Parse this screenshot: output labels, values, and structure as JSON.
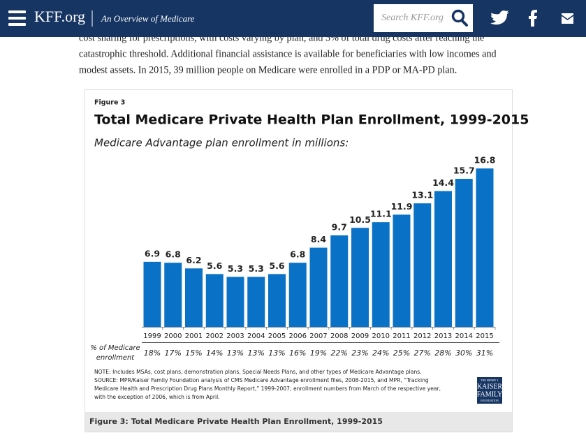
{
  "header": {
    "logo": "KFF.org",
    "section": "An Overview of Medicare",
    "search_placeholder": "Search KFF.org"
  },
  "paragraph": [
    "cost sharing for prescriptions, with costs varying by plan, and 5% of total drug costs after reaching the",
    "catastrophic threshold. Additional financial assistance is available for beneficiaries with low incomes and",
    "modest assets. In 2015, 39 million people on Medicare were enrolled in a PDP or MA-PD plan."
  ],
  "chart_data": {
    "type": "bar",
    "figure_label": "Figure 3",
    "title": "Total Medicare Private Health Plan Enrollment, 1999-2015",
    "subtitle": "Medicare Advantage plan enrollment in millions:",
    "categories": [
      "1999",
      "2000",
      "2001",
      "2002",
      "2003",
      "2004",
      "2005",
      "2006",
      "2007",
      "2008",
      "2009",
      "2010",
      "2011",
      "2012",
      "2013",
      "2014",
      "2015"
    ],
    "values": [
      6.9,
      6.8,
      6.2,
      5.6,
      5.3,
      5.3,
      5.6,
      6.8,
      8.4,
      9.7,
      10.5,
      11.1,
      11.9,
      13.1,
      14.4,
      15.7,
      16.8
    ],
    "color": "#0a72c6",
    "share": {
      "label": [
        "% of Medicare",
        "enrollment"
      ],
      "values": [
        18,
        17,
        15,
        14,
        13,
        13,
        13,
        16,
        19,
        22,
        23,
        24,
        25,
        27,
        28,
        30,
        31
      ],
      "value_labels": [
        "18%",
        "17%",
        "15%",
        "14%",
        "13%",
        "13%",
        "13%",
        "16%",
        "19%",
        "22%",
        "23%",
        "24%",
        "25%",
        "27%",
        "28%",
        "30%",
        "31%"
      ]
    },
    "notes": [
      "NOTE: Includes MSAs, cost plans, demonstration plans, Special Needs Plans, and other types of Medicare Advantage plans.",
      "SOURCE:  MPR/Kaiser Family Foundation analysis of CMS Medicare Advantage enrollment files, 2008-2015, and MPR, “Tracking",
      "Medicare Health and Prescription Drug Plans Monthly Report,” 1999-2007; enrollment numbers from March of the respective year,",
      "with the exception of 2006, which is from April."
    ],
    "logo": [
      "THE HENRY J.",
      "KAISER",
      "FAMILY",
      "FOUNDATION"
    ],
    "caption": "Figure 3: Total Medicare Private Health Plan Enrollment, 1999-2015"
  }
}
